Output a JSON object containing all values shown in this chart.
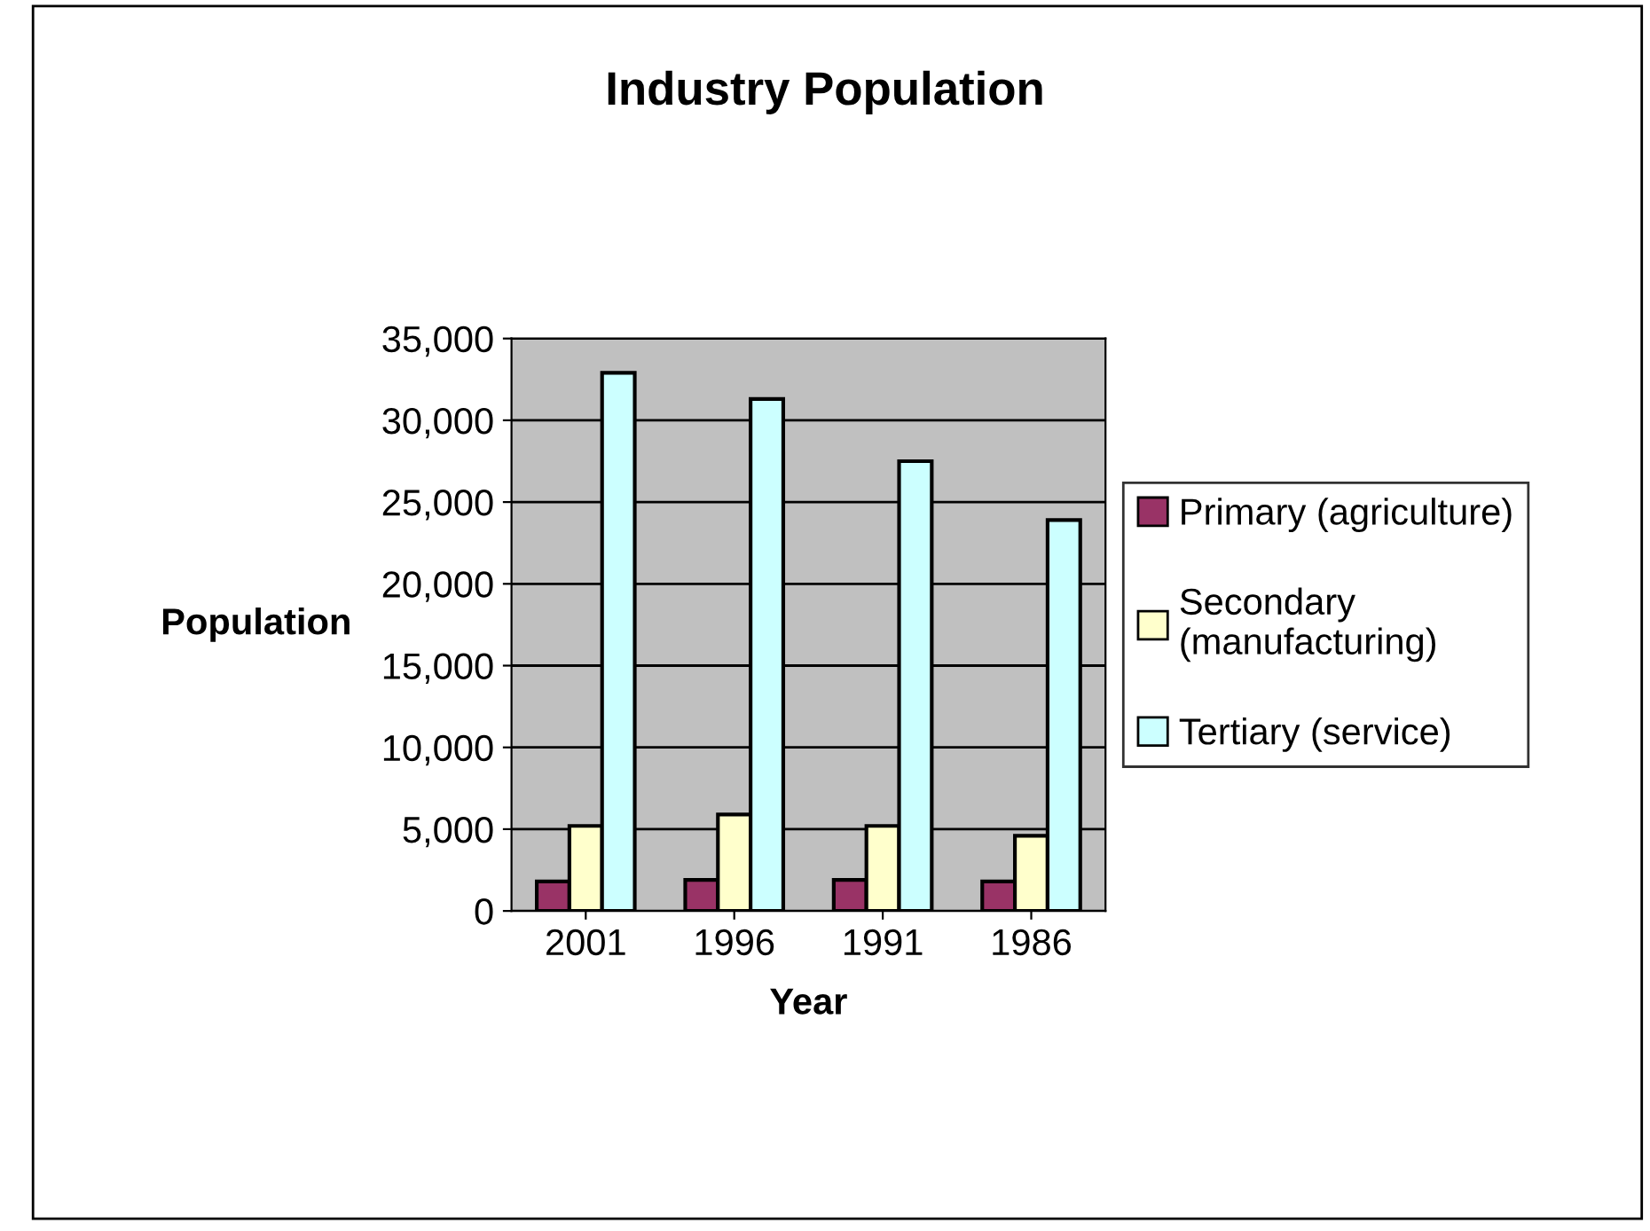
{
  "chart_data": {
    "type": "bar",
    "title": "Industry Population",
    "xlabel": "Year",
    "ylabel": "Population",
    "categories": [
      "2001",
      "1996",
      "1991",
      "1986"
    ],
    "series": [
      {
        "name": "Primary (agriculture)",
        "color": "#993366",
        "values": [
          1800,
          1900,
          1900,
          1800
        ]
      },
      {
        "name": "Secondary\n(manufacturing)",
        "color": "#ffffcc",
        "values": [
          5200,
          5900,
          5200,
          4600
        ]
      },
      {
        "name": "Tertiary (service)",
        "color": "#ccffff",
        "values": [
          32900,
          31300,
          27500,
          23900
        ]
      }
    ],
    "ylim": [
      0,
      35000
    ],
    "yticks": [
      {
        "value": 0,
        "label": "0"
      },
      {
        "value": 5000,
        "label": "5,000"
      },
      {
        "value": 10000,
        "label": "10,000"
      },
      {
        "value": 15000,
        "label": "15,000"
      },
      {
        "value": 20000,
        "label": "20,000"
      },
      {
        "value": 25000,
        "label": "25,000"
      },
      {
        "value": 30000,
        "label": "30,000"
      },
      {
        "value": 35000,
        "label": "35,000"
      }
    ],
    "grid": "y",
    "legend": "right"
  }
}
